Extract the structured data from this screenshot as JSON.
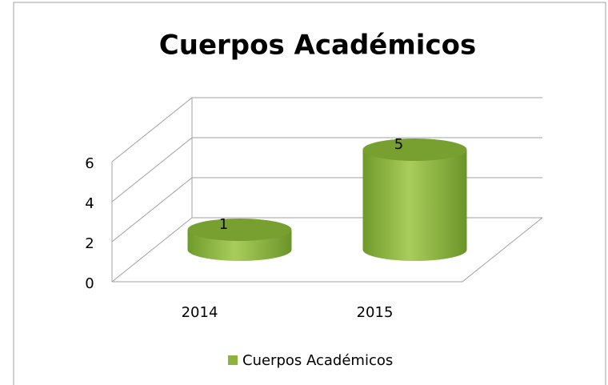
{
  "chart_data": {
    "type": "bar3d",
    "title": "Cuerpos Académicos",
    "categories": [
      "2014",
      "2015"
    ],
    "series": [
      {
        "name": "Cuerpos Académicos",
        "color": "#8db33e",
        "values": [
          1,
          5
        ]
      }
    ],
    "ylim": [
      0,
      6
    ],
    "yticks": [
      0,
      2,
      4,
      6
    ],
    "grid": true,
    "legend": "bottom"
  }
}
